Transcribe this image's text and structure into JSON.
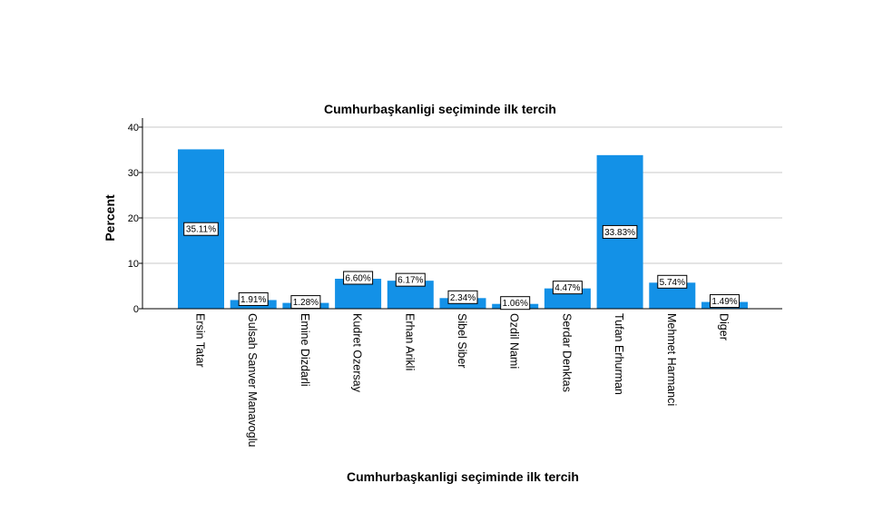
{
  "chart_data": {
    "type": "bar",
    "title": "Cumhurbaşkanligi seçiminde ilk tercih",
    "xlabel": "Cumhurbaşkanligi seçiminde ilk tercih",
    "ylabel": "Percent",
    "ylim": [
      0,
      40
    ],
    "yticks": [
      "0",
      "10",
      "20",
      "30",
      "40"
    ],
    "grid": "horizontal",
    "categories": [
      "Ersin Tatar",
      "Gulsah Sanver Manavoglu",
      "Emine Dizdarli",
      "Kudret Ozersay",
      "Erhan Arikli",
      "Sibel Siber",
      "Ozdil Nami",
      "Serdar Denktas",
      "Tufan Erhurman",
      "Mehmet Harmanci",
      "Diger"
    ],
    "values": [
      35.11,
      1.91,
      1.28,
      6.6,
      6.17,
      2.34,
      1.06,
      4.47,
      33.83,
      5.74,
      1.49
    ],
    "data_labels": [
      "35.11%",
      "1.91%",
      "1.28%",
      "6.60%",
      "6.17%",
      "2.34%",
      "1.06%",
      "4.47%",
      "33.83%",
      "5.74%",
      "1.49%"
    ],
    "bar_color": "#1391e7"
  }
}
